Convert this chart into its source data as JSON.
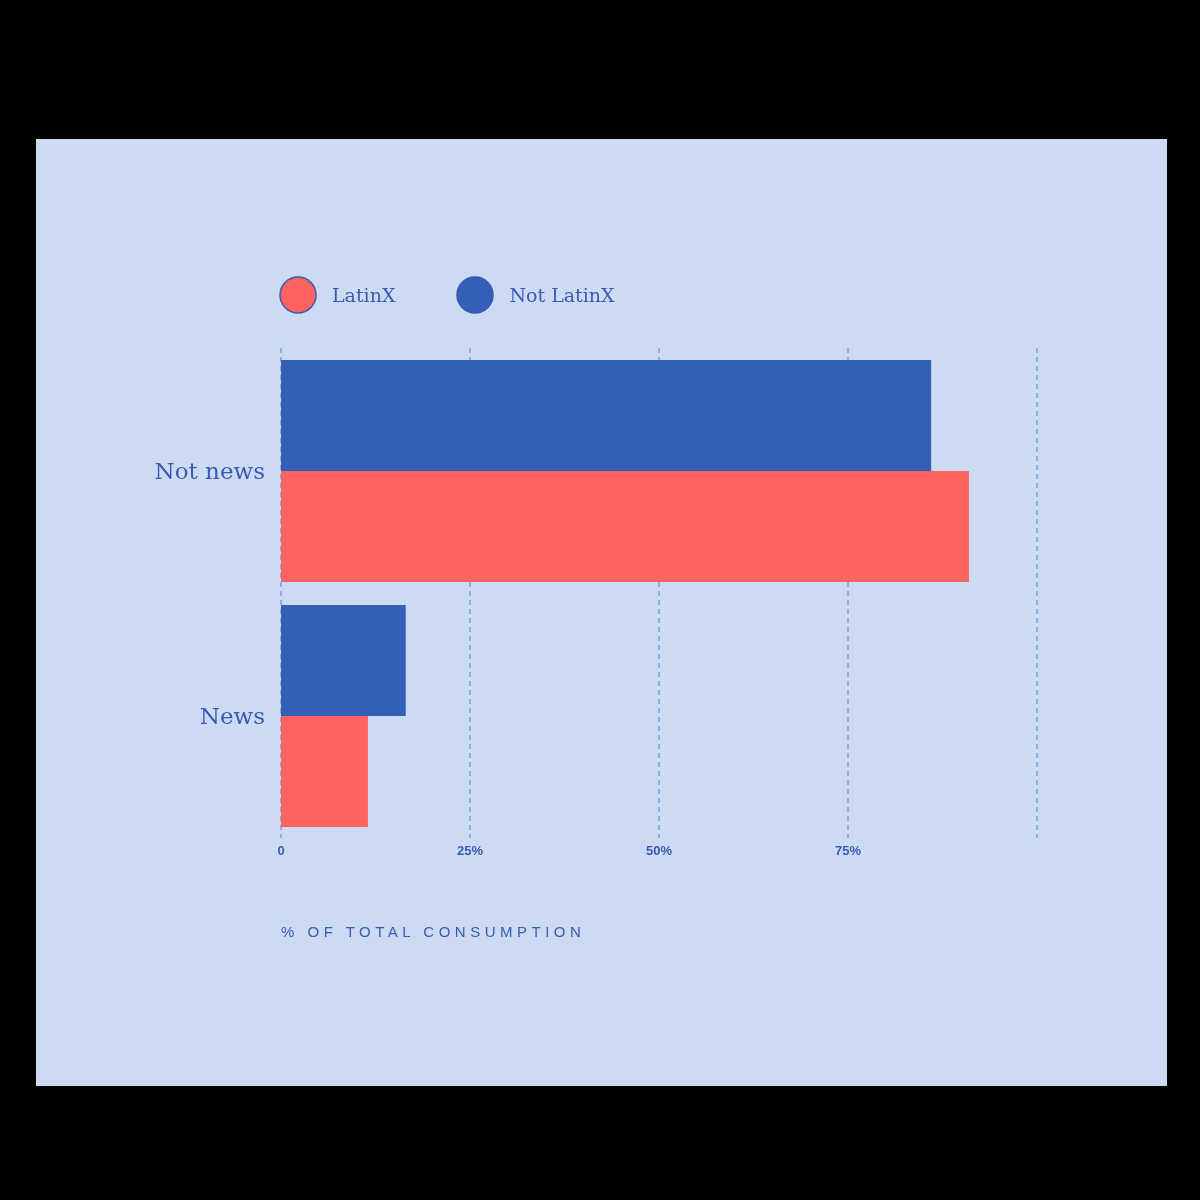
{
  "chart_data": {
    "type": "bar",
    "orientation": "horizontal",
    "xlabel": "% OF TOTAL CONSUMPTION",
    "categories": [
      "Not news",
      "News"
    ],
    "series": [
      {
        "name": "LatinX",
        "color": "#fe6361",
        "values": [
          91,
          11.5
        ]
      },
      {
        "name": "Not LatinX",
        "color": "#345fb6",
        "values": [
          86,
          16.5
        ]
      }
    ],
    "xlim": [
      0,
      100
    ],
    "xticks": [
      0,
      {
        "value": 25,
        "label": "25%"
      },
      {
        "value": 50,
        "label": "50%"
      },
      {
        "value": 75,
        "label": "75%"
      }
    ],
    "grid": "x",
    "legend": "top left"
  }
}
